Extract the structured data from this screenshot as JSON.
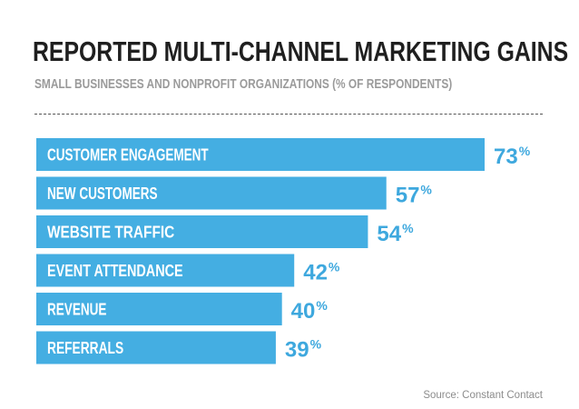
{
  "title": "REPORTED MULTI-CHANNEL MARKETING GAINS",
  "subtitle": "SMALL BUSINESSES AND NONPROFIT ORGANIZATIONS (% OF RESPONDENTS)",
  "source": "Source: Constant Contact",
  "colors": {
    "bar": "#44aee2",
    "value_text": "#3ea8de",
    "title": "#1f1f1f",
    "subtitle": "#9a9a9a"
  },
  "chart_data": {
    "type": "bar",
    "orientation": "horizontal",
    "categories": [
      "CUSTOMER ENGAGEMENT",
      "NEW CUSTOMERS",
      "WEBSITE TRAFFIC",
      "EVENT ATTENDANCE",
      "REVENUE",
      "REFERRALS"
    ],
    "values": [
      73,
      57,
      54,
      42,
      40,
      39
    ],
    "value_unit": "%",
    "xlim": [
      0,
      100
    ],
    "grid": false,
    "legend": "none"
  }
}
